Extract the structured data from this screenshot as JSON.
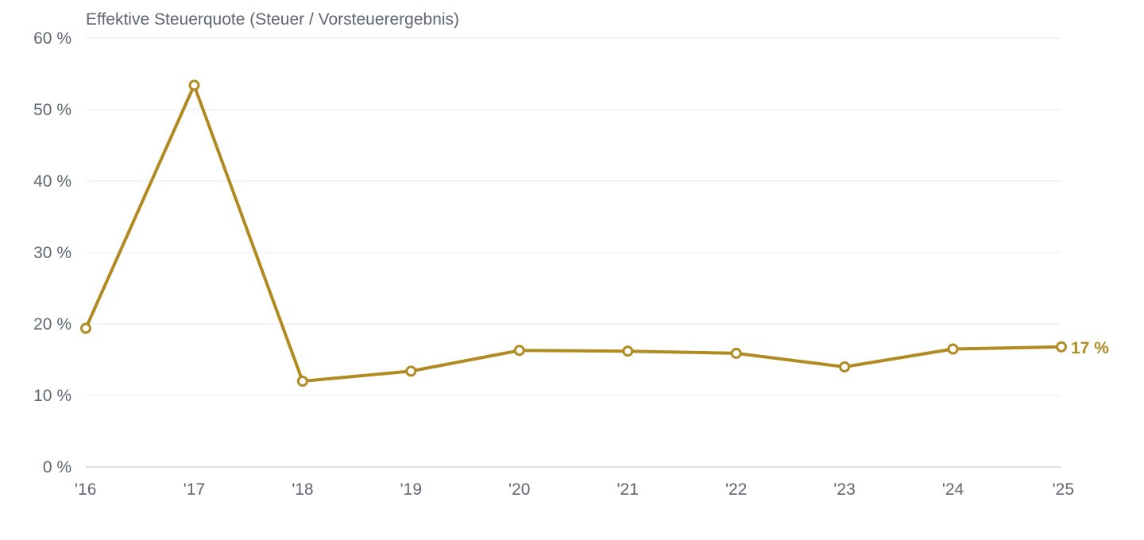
{
  "chart_data": {
    "type": "line",
    "title": "Effektive Steuerquote (Steuer / Vorsteuerergebnis)",
    "xlabel": "",
    "ylabel": "",
    "categories": [
      "'16",
      "'17",
      "'18",
      "'19",
      "'20",
      "'21",
      "'22",
      "'23",
      "'24",
      "'25"
    ],
    "series": [
      {
        "values": [
          19.4,
          53.4,
          12.0,
          13.4,
          16.3,
          16.2,
          15.9,
          14.0,
          16.5,
          16.8
        ]
      }
    ],
    "ylim": [
      0,
      60
    ],
    "yticks": [
      0,
      10,
      20,
      30,
      40,
      50,
      60
    ],
    "ytick_labels": [
      "0 %",
      "10 %",
      "20 %",
      "30 %",
      "40 %",
      "50 %",
      "60 %"
    ],
    "end_label": "17 %",
    "grid": true,
    "legend": "none",
    "colors": {
      "series": "#b28a22",
      "grid": "#e6e8eb",
      "text": "#5f6670"
    }
  }
}
